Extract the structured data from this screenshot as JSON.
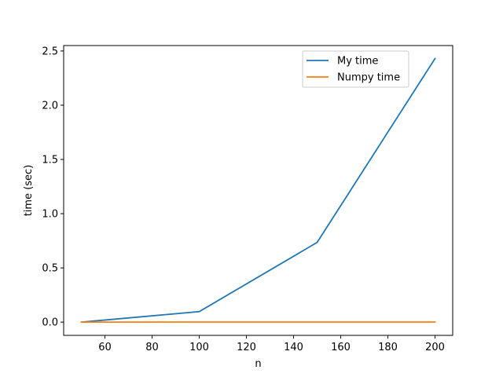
{
  "chart_data": {
    "type": "line",
    "xlabel": "n",
    "ylabel": "time (sec)",
    "xlim": [
      42.5,
      207.5
    ],
    "ylim": [
      -0.122,
      2.55
    ],
    "xticks": [
      60,
      80,
      100,
      120,
      140,
      160,
      180,
      200
    ],
    "xtick_labels": [
      "60",
      "80",
      "100",
      "120",
      "140",
      "160",
      "180",
      "200"
    ],
    "yticks": [
      0.0,
      0.5,
      1.0,
      1.5,
      2.0,
      2.5
    ],
    "ytick_labels": [
      "0.0",
      "0.5",
      "1.0",
      "1.5",
      "2.0",
      "2.5"
    ],
    "x": [
      50,
      100,
      150,
      200
    ],
    "series": [
      {
        "name": "My time",
        "color": "#1f77b4",
        "values": [
          0.0,
          0.097,
          0.735,
          2.43
        ]
      },
      {
        "name": "Numpy time",
        "color": "#ff7f0e",
        "values": [
          0.0,
          0.001,
          0.001,
          0.001
        ]
      }
    ],
    "legend": {
      "placement": "top-right"
    },
    "grid": false
  }
}
